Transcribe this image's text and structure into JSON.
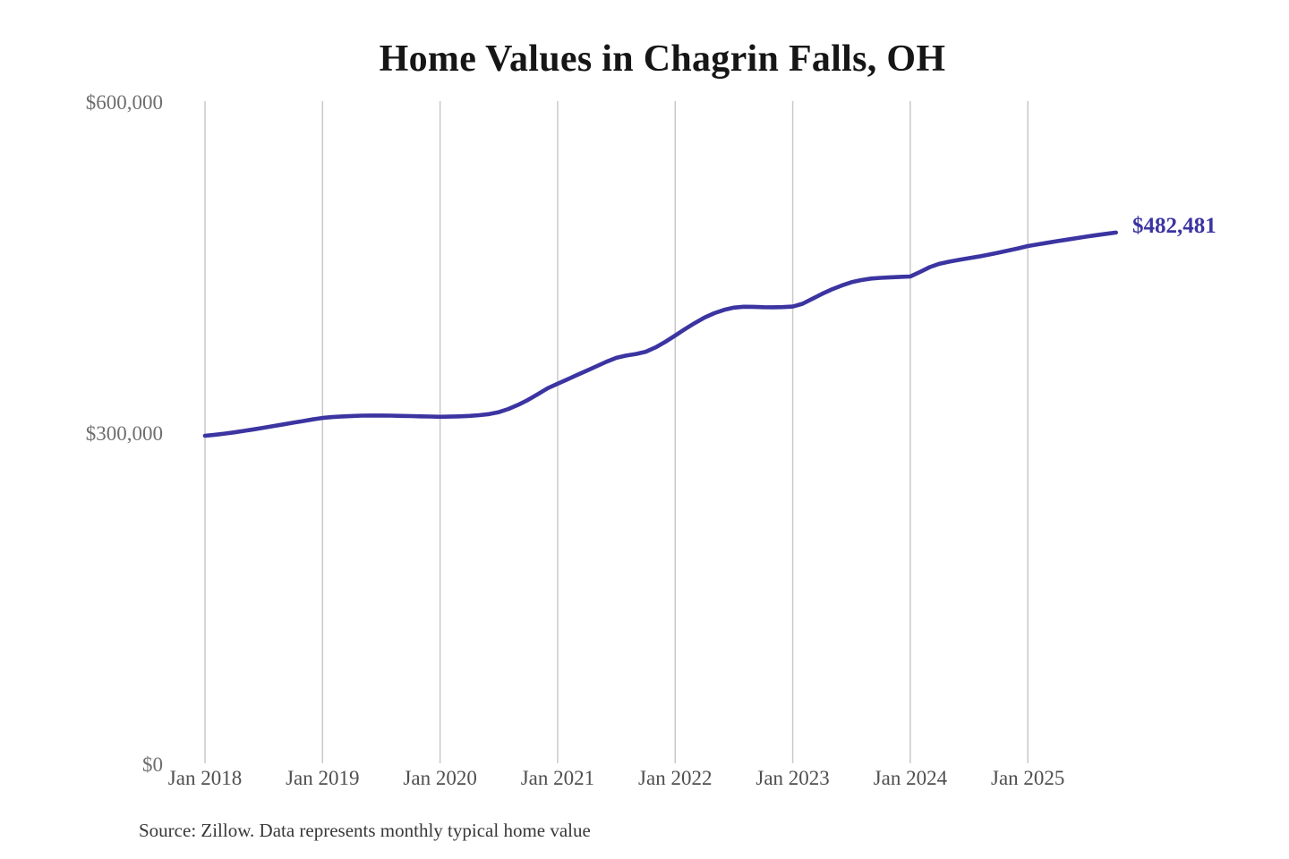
{
  "chart": {
    "title": "Home Values in Chagrin Falls, OH",
    "end_label": "$482,481",
    "source_note": "Source: Zillow. Data represents monthly typical home value",
    "colors": {
      "line": "#3b34a1",
      "end_label": "#3b34a1",
      "grid": "#c9c9c9",
      "title": "#161616",
      "y_tick": "#6e6e6e",
      "x_tick": "#4f4f4f",
      "source": "#383838",
      "background": "#ffffff"
    }
  },
  "chart_data": {
    "type": "line",
    "title": "Home Values in Chagrin Falls, OH",
    "xlabel": "",
    "ylabel": "",
    "ylim": [
      0,
      600000
    ],
    "y_tick_labels": [
      "$0",
      "$300,000",
      "$600,000"
    ],
    "y_tick_values": [
      0,
      300000,
      600000
    ],
    "x_tick_labels": [
      "Jan 2018",
      "Jan 2019",
      "Jan 2020",
      "Jan 2021",
      "Jan 2022",
      "Jan 2023",
      "Jan 2024",
      "Jan 2025"
    ],
    "grid": "vertical-only",
    "legend_position": "none",
    "latest_value": 482481,
    "latest_value_label": "$482,481",
    "series": [
      {
        "name": "Typical home value",
        "unit": "USD",
        "frequency": "monthly",
        "start_month": "2018-01",
        "end_month": "2025-10",
        "n_points": 94,
        "values": [
          298400,
          299300,
          300300,
          301500,
          302800,
          304200,
          305700,
          307200,
          308700,
          310200,
          311700,
          313200,
          314500,
          315300,
          315900,
          316300,
          316600,
          316700,
          316700,
          316600,
          316400,
          316200,
          316000,
          315800,
          315600,
          315700,
          316000,
          316400,
          317000,
          318000,
          319800,
          322700,
          326500,
          331000,
          336200,
          341500,
          345500,
          349500,
          353500,
          357500,
          361500,
          365500,
          369000,
          371000,
          372500,
          374500,
          378500,
          383500,
          389200,
          395000,
          400500,
          405500,
          409500,
          412500,
          414500,
          415300,
          415200,
          414900,
          414800,
          415000,
          415500,
          418000,
          422500,
          427000,
          431000,
          434500,
          437500,
          439500,
          440800,
          441500,
          442000,
          442400,
          442700,
          446800,
          451200,
          454300,
          456200,
          457800,
          459300,
          460800,
          462500,
          464300,
          466200,
          468200,
          470300,
          471800,
          473300,
          474700,
          476100,
          477500,
          478900,
          480200,
          481400,
          482481
        ]
      }
    ]
  }
}
